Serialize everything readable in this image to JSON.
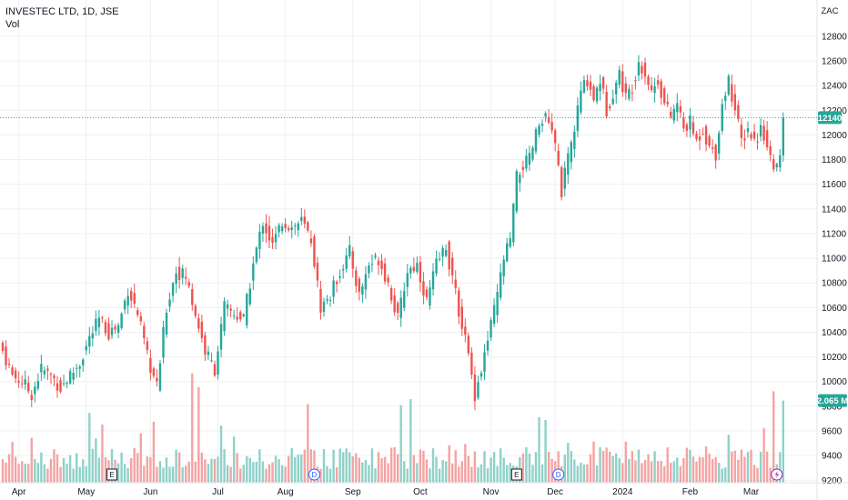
{
  "header": {
    "title": "INVESTEC LTD, 1D, JSE",
    "vol_label": "Vol"
  },
  "currency_label": "ZAC",
  "colors": {
    "up": "#26a69a",
    "down": "#ef5350",
    "vol_up": "#8fd1c8",
    "vol_down": "#f5a3a3",
    "grid": "#eef0f3"
  },
  "chart_data": {
    "type": "candlestick",
    "title": "INVESTEC LTD, 1D, JSE",
    "y_axis": {
      "ylim": [
        9180,
        12880
      ],
      "ticks": [
        9200,
        9400,
        9600,
        9800,
        10000,
        10200,
        10400,
        10600,
        10800,
        11000,
        11200,
        11400,
        11600,
        11800,
        12000,
        12200,
        12400,
        12600,
        12800
      ]
    },
    "x_axis": {
      "labels": [
        "Apr",
        "May",
        "Jun",
        "Jul",
        "Aug",
        "Sep",
        "Oct",
        "Nov",
        "Dec",
        "2024",
        "Feb",
        "Mar"
      ],
      "label_positions_by_day": [
        5,
        26,
        46,
        67,
        88,
        109,
        130,
        152,
        172,
        193,
        214,
        233
      ]
    },
    "last_price": 12140,
    "last_volume": "2.065 M",
    "grid": true,
    "volume_max_m": 3.2,
    "events": [
      {
        "type": "E",
        "day": 34
      },
      {
        "type": "D",
        "day": 97
      },
      {
        "type": "E",
        "day": 160
      },
      {
        "type": "D",
        "day": 173
      },
      {
        "type": "split",
        "day": 241
      }
    ],
    "anchors": [
      {
        "day": 0,
        "close": 10250
      },
      {
        "day": 3,
        "close": 10050
      },
      {
        "day": 6,
        "close": 10000
      },
      {
        "day": 9,
        "close": 9900
      },
      {
        "day": 12,
        "close": 10100
      },
      {
        "day": 15,
        "close": 10050
      },
      {
        "day": 18,
        "close": 9950
      },
      {
        "day": 21,
        "close": 10050
      },
      {
        "day": 24,
        "close": 10150
      },
      {
        "day": 27,
        "close": 10350
      },
      {
        "day": 30,
        "close": 10500
      },
      {
        "day": 33,
        "close": 10400
      },
      {
        "day": 36,
        "close": 10450
      },
      {
        "day": 39,
        "close": 10750
      },
      {
        "day": 42,
        "close": 10550
      },
      {
        "day": 45,
        "close": 10200
      },
      {
        "day": 48,
        "close": 9950
      },
      {
        "day": 51,
        "close": 10600
      },
      {
        "day": 54,
        "close": 10900
      },
      {
        "day": 57,
        "close": 10850
      },
      {
        "day": 60,
        "close": 10550
      },
      {
        "day": 63,
        "close": 10250
      },
      {
        "day": 66,
        "close": 10100
      },
      {
        "day": 69,
        "close": 10600
      },
      {
        "day": 72,
        "close": 10550
      },
      {
        "day": 75,
        "close": 10500
      },
      {
        "day": 78,
        "close": 10950
      },
      {
        "day": 81,
        "close": 11300
      },
      {
        "day": 84,
        "close": 11100
      },
      {
        "day": 87,
        "close": 11300
      },
      {
        "day": 90,
        "close": 11250
      },
      {
        "day": 93,
        "close": 11300
      },
      {
        "day": 96,
        "close": 11150
      },
      {
        "day": 99,
        "close": 10600
      },
      {
        "day": 102,
        "close": 10700
      },
      {
        "day": 105,
        "close": 10900
      },
      {
        "day": 108,
        "close": 11050
      },
      {
        "day": 111,
        "close": 10700
      },
      {
        "day": 114,
        "close": 10950
      },
      {
        "day": 117,
        "close": 11000
      },
      {
        "day": 120,
        "close": 10800
      },
      {
        "day": 123,
        "close": 10500
      },
      {
        "day": 126,
        "close": 10900
      },
      {
        "day": 129,
        "close": 10950
      },
      {
        "day": 132,
        "close": 10650
      },
      {
        "day": 135,
        "close": 10950
      },
      {
        "day": 138,
        "close": 11100
      },
      {
        "day": 141,
        "close": 10700
      },
      {
        "day": 144,
        "close": 10350
      },
      {
        "day": 147,
        "close": 9900
      },
      {
        "day": 149,
        "close": 10100
      },
      {
        "day": 152,
        "close": 10450
      },
      {
        "day": 154,
        "close": 10700
      },
      {
        "day": 156,
        "close": 11000
      },
      {
        "day": 158,
        "close": 11150
      },
      {
        "day": 160,
        "close": 11650
      },
      {
        "day": 162,
        "close": 11750
      },
      {
        "day": 164,
        "close": 11800
      },
      {
        "day": 166,
        "close": 12000
      },
      {
        "day": 168,
        "close": 12150
      },
      {
        "day": 170,
        "close": 12100
      },
      {
        "day": 172,
        "close": 11900
      },
      {
        "day": 174,
        "close": 11550
      },
      {
        "day": 176,
        "close": 11800
      },
      {
        "day": 178,
        "close": 12050
      },
      {
        "day": 180,
        "close": 12350
      },
      {
        "day": 182,
        "close": 12450
      },
      {
        "day": 184,
        "close": 12300
      },
      {
        "day": 186,
        "close": 12450
      },
      {
        "day": 188,
        "close": 12200
      },
      {
        "day": 190,
        "close": 12350
      },
      {
        "day": 192,
        "close": 12500
      },
      {
        "day": 194,
        "close": 12300
      },
      {
        "day": 196,
        "close": 12400
      },
      {
        "day": 198,
        "close": 12600
      },
      {
        "day": 200,
        "close": 12500
      },
      {
        "day": 202,
        "close": 12350
      },
      {
        "day": 204,
        "close": 12450
      },
      {
        "day": 206,
        "close": 12250
      },
      {
        "day": 208,
        "close": 12150
      },
      {
        "day": 210,
        "close": 12250
      },
      {
        "day": 212,
        "close": 12050
      },
      {
        "day": 214,
        "close": 12100
      },
      {
        "day": 216,
        "close": 11950
      },
      {
        "day": 218,
        "close": 12050
      },
      {
        "day": 220,
        "close": 11900
      },
      {
        "day": 222,
        "close": 11850
      },
      {
        "day": 224,
        "close": 12250
      },
      {
        "day": 226,
        "close": 12450
      },
      {
        "day": 228,
        "close": 12200
      },
      {
        "day": 230,
        "close": 11950
      },
      {
        "day": 232,
        "close": 12050
      },
      {
        "day": 234,
        "close": 11950
      },
      {
        "day": 236,
        "close": 12050
      },
      {
        "day": 238,
        "close": 11950
      },
      {
        "day": 240,
        "close": 11700
      },
      {
        "day": 242,
        "close": 11800
      },
      {
        "day": 243,
        "close": 12140
      }
    ]
  }
}
